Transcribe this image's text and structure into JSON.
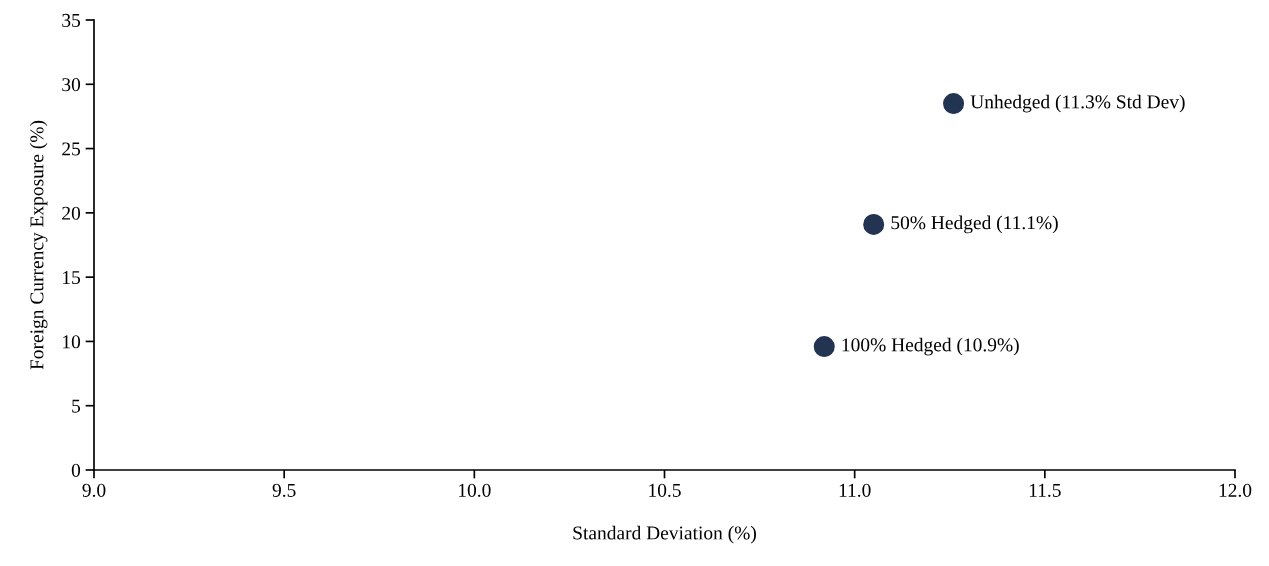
{
  "chart_data": {
    "type": "scatter",
    "xlabel": "Standard Deviation (%)",
    "ylabel": "Foreign Currency Exposure (%)",
    "x": [
      10.92,
      11.05,
      11.26
    ],
    "series": [
      {
        "color": "#233452",
        "values": [
          9.6,
          19.1,
          28.5
        ]
      }
    ],
    "marker": "circle",
    "xlim": [
      9.0,
      12.0
    ],
    "xticks": [
      {
        "value": 9.0,
        "label": "9.0"
      },
      {
        "value": 9.5,
        "label": "9.5"
      },
      {
        "value": 10.0,
        "label": "10.0"
      },
      {
        "value": 10.5,
        "label": "10.5"
      },
      {
        "value": 11.0,
        "label": "11.0"
      },
      {
        "value": 11.5,
        "label": "11.5"
      },
      {
        "value": 12.0,
        "label": "12.0"
      }
    ],
    "ylim": [
      0,
      35
    ],
    "yticks": [
      0,
      5,
      10,
      15,
      20,
      25,
      30,
      35
    ],
    "grid": false,
    "legend": false,
    "annotations": [
      {
        "text": "100% Hedged (10.9%)",
        "x": 10.92,
        "y": 9.6
      },
      {
        "text": "50% Hedged (11.1%)",
        "x": 11.05,
        "y": 19.1
      },
      {
        "text": "Unhedged (11.3% Std Dev)",
        "x": 11.26,
        "y": 28.5
      }
    ]
  }
}
